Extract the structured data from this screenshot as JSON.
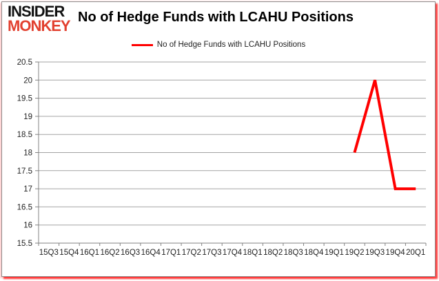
{
  "logo": {
    "line1": "INSIDER",
    "line2": "MONKEY"
  },
  "header": {
    "title": "No of Hedge Funds with LCAHU Positions"
  },
  "legend": {
    "label": "No of Hedge Funds with LCAHU Positions",
    "color": "#ff0000"
  },
  "chart_data": {
    "type": "line",
    "title": "No of Hedge Funds with LCAHU Positions",
    "categories": [
      "15Q3",
      "15Q4",
      "16Q1",
      "16Q2",
      "16Q3",
      "16Q4",
      "17Q1",
      "17Q2",
      "17Q3",
      "17Q4",
      "18Q1",
      "18Q2",
      "18Q3",
      "18Q4",
      "19Q1",
      "19Q2",
      "19Q3",
      "19Q4",
      "20Q1"
    ],
    "series": [
      {
        "name": "No of Hedge Funds with LCAHU Positions",
        "color": "#ff0000",
        "values": [
          null,
          null,
          null,
          null,
          null,
          null,
          null,
          null,
          null,
          null,
          null,
          null,
          null,
          null,
          null,
          18,
          20,
          17,
          17
        ]
      }
    ],
    "xlabel": "",
    "ylabel": "",
    "ylim": [
      15.5,
      20.5
    ],
    "ystep": 0.5,
    "grid": "horizontal",
    "legend_position": "top-center",
    "colors": {
      "gridline": "#a3a3a3",
      "axis": "#808080",
      "tick_label": "#1f1f1f"
    }
  }
}
